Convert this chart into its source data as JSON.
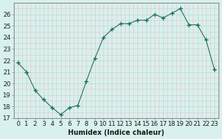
{
  "x": [
    0,
    1,
    2,
    3,
    4,
    5,
    6,
    7,
    8,
    9,
    10,
    11,
    12,
    13,
    14,
    15,
    16,
    17,
    18,
    19,
    20,
    21,
    22,
    23
  ],
  "y": [
    21.8,
    21.0,
    19.4,
    18.6,
    17.9,
    17.3,
    17.9,
    18.1,
    20.2,
    22.2,
    24.0,
    24.7,
    25.2,
    25.2,
    25.5,
    25.5,
    26.0,
    25.7,
    26.1,
    26.5,
    25.1,
    25.1,
    23.8,
    21.2
  ],
  "line_color": "#1a6b5a",
  "marker": "+",
  "marker_size": 5,
  "background_color": "#d8f0ee",
  "major_grid_color": "#c8d8d0",
  "minor_grid_color": "#e8c8c8",
  "xlabel": "Humidex (Indice chaleur)",
  "xlabel_fontsize": 7,
  "ylabel_ticks": [
    17,
    18,
    19,
    20,
    21,
    22,
    23,
    24,
    25,
    26
  ],
  "ylim": [
    17,
    27
  ],
  "xlim": [
    -0.5,
    23.5
  ],
  "tick_fontsize": 6.5,
  "spine_color": "#888888"
}
